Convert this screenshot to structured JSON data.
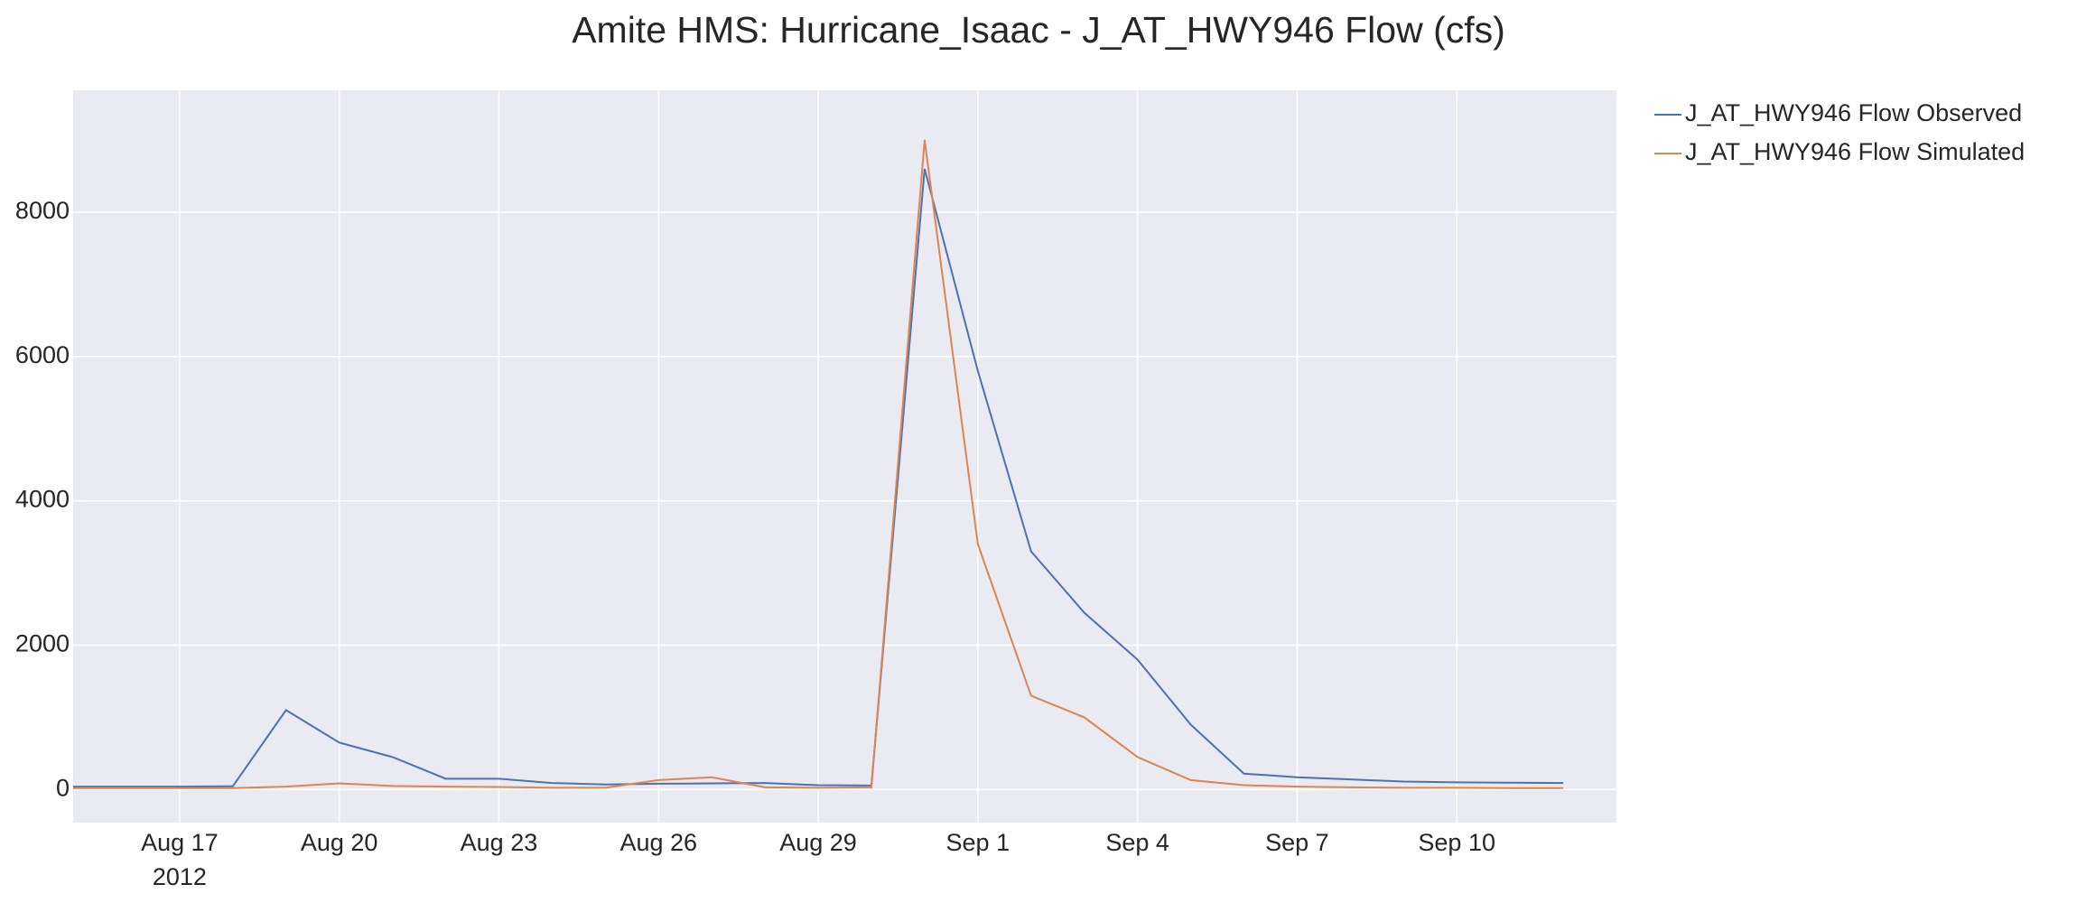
{
  "chart_data": {
    "type": "line",
    "title": "Amite HMS: Hurricane_Isaac - J_AT_HWY946 Flow (cfs)",
    "x": [
      "2012-08-15",
      "2012-08-16",
      "2012-08-17",
      "2012-08-18",
      "2012-08-19",
      "2012-08-20",
      "2012-08-21",
      "2012-08-22",
      "2012-08-23",
      "2012-08-24",
      "2012-08-25",
      "2012-08-26",
      "2012-08-27",
      "2012-08-28",
      "2012-08-29",
      "2012-08-30",
      "2012-08-31",
      "2012-09-01",
      "2012-09-02",
      "2012-09-03",
      "2012-09-04",
      "2012-09-05",
      "2012-09-06",
      "2012-09-07",
      "2012-09-08",
      "2012-09-09",
      "2012-09-10",
      "2012-09-11",
      "2012-09-12"
    ],
    "series": [
      {
        "name": "J_AT_HWY946 Flow Observed",
        "color": "#4c72b0",
        "values": [
          40,
          40,
          40,
          45,
          1100,
          650,
          450,
          150,
          150,
          90,
          70,
          80,
          85,
          90,
          60,
          55,
          8600,
          5800,
          3300,
          2450,
          1800,
          900,
          220,
          170,
          140,
          110,
          100,
          95,
          90
        ]
      },
      {
        "name": "J_AT_HWY946 Flow Simulated",
        "color": "#dd8452",
        "values": [
          20,
          20,
          20,
          20,
          40,
          85,
          50,
          40,
          35,
          25,
          25,
          130,
          170,
          30,
          25,
          30,
          9000,
          3400,
          1300,
          1000,
          450,
          130,
          60,
          40,
          30,
          25,
          25,
          20,
          20
        ]
      }
    ],
    "xlim": [
      "2012-08-15",
      "2012-09-13"
    ],
    "xticks": [
      {
        "value": "2012-08-17",
        "label": "Aug 17"
      },
      {
        "value": "2012-08-20",
        "label": "Aug 20"
      },
      {
        "value": "2012-08-23",
        "label": "Aug 23"
      },
      {
        "value": "2012-08-26",
        "label": "Aug 26"
      },
      {
        "value": "2012-08-29",
        "label": "Aug 29"
      },
      {
        "value": "2012-09-01",
        "label": "Sep 1"
      },
      {
        "value": "2012-09-04",
        "label": "Sep 4"
      },
      {
        "value": "2012-09-07",
        "label": "Sep 7"
      },
      {
        "value": "2012-09-10",
        "label": "Sep 10"
      }
    ],
    "xtick_year": "2012",
    "ylim": [
      -459,
      9688
    ],
    "yticks": [
      0,
      2000,
      4000,
      6000,
      8000
    ],
    "grid": true,
    "legend": "outside-top-right",
    "background": "#eaeaf2"
  }
}
